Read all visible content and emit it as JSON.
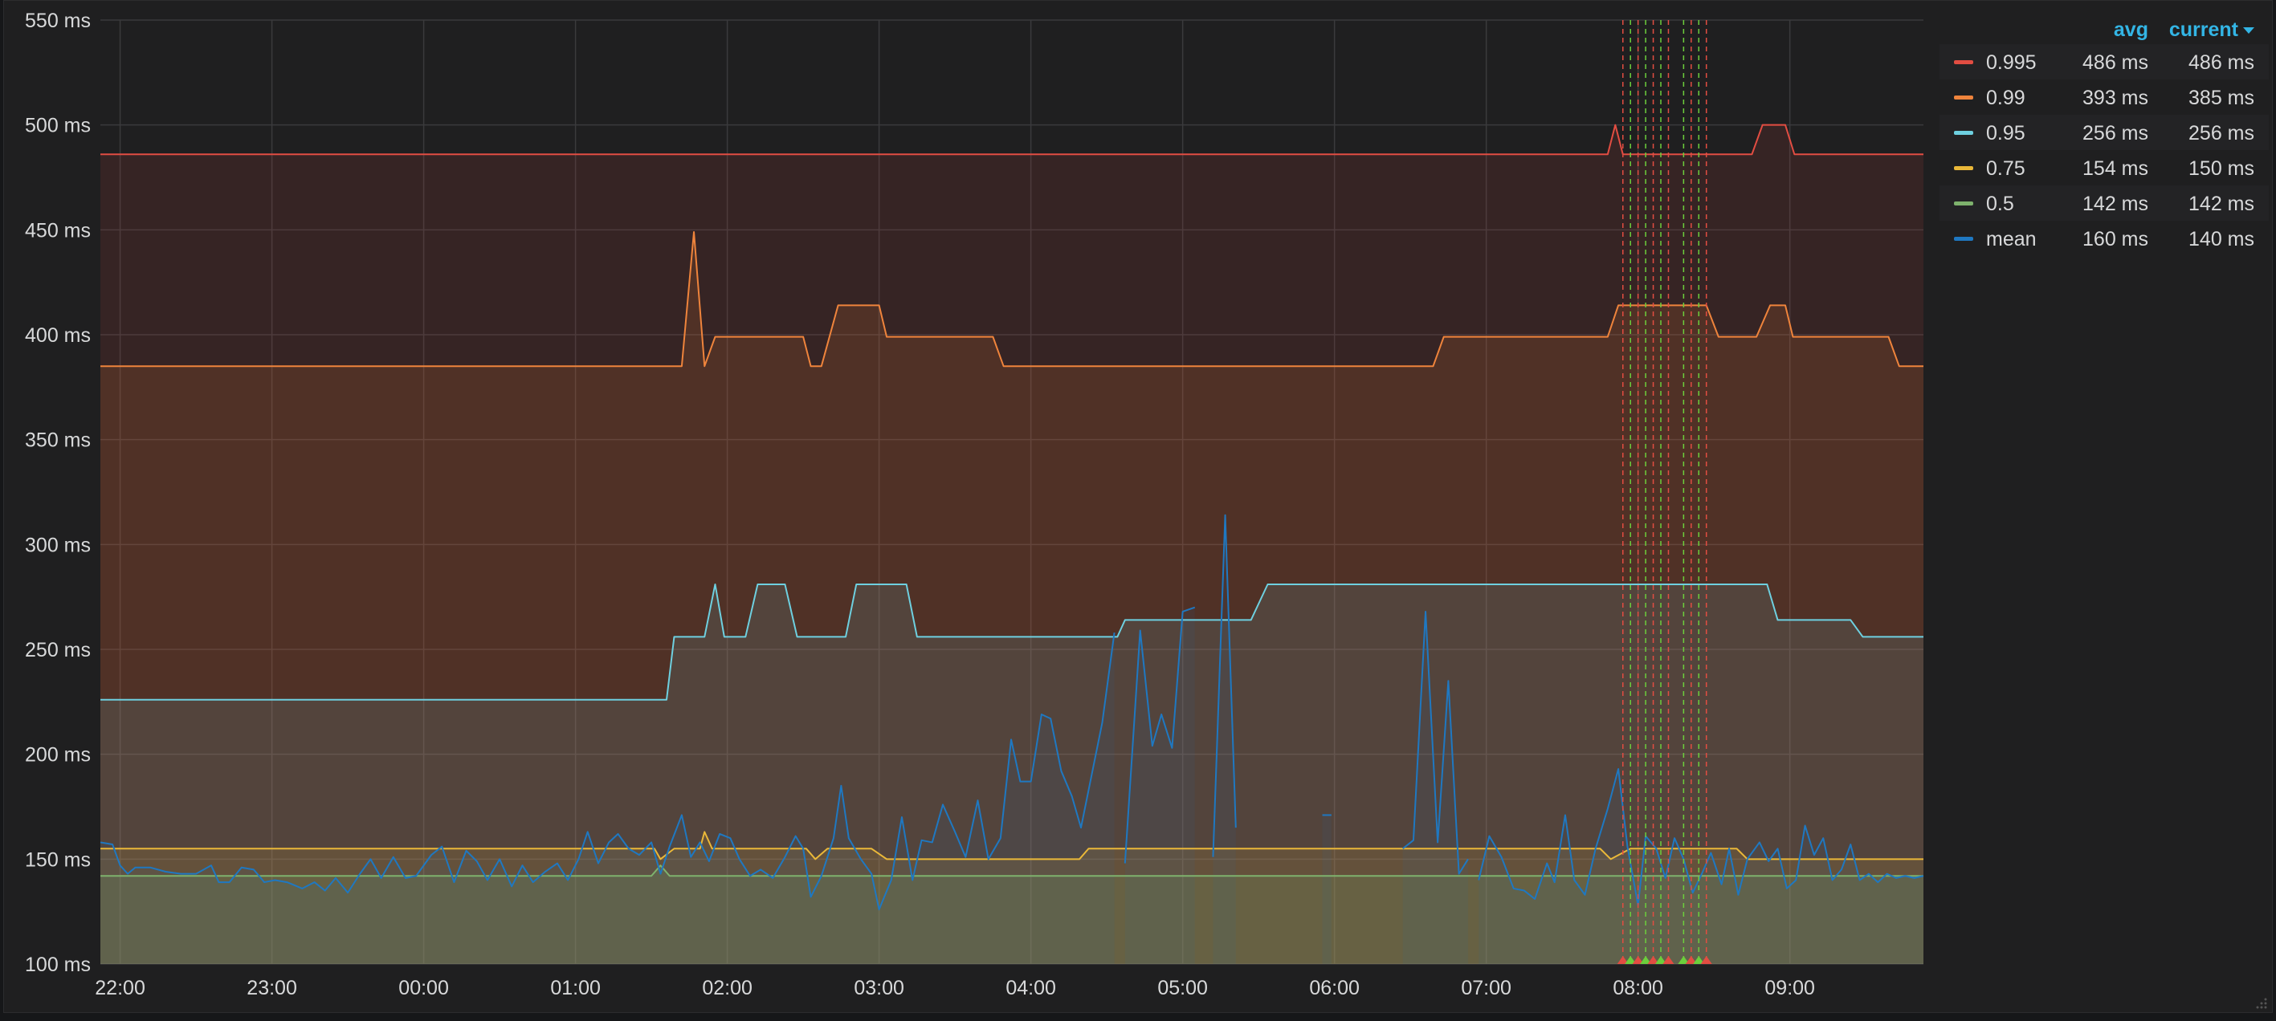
{
  "chart_data": {
    "type": "line",
    "title": "",
    "xlabel": "",
    "ylabel": "",
    "ylim": [
      100,
      550
    ],
    "y_ticks": [
      100,
      150,
      200,
      250,
      300,
      350,
      400,
      450,
      500,
      550
    ],
    "y_tick_labels": [
      "100 ms",
      "150 ms",
      "200 ms",
      "250 ms",
      "300 ms",
      "350 ms",
      "400 ms",
      "450 ms",
      "500 ms",
      "550 ms"
    ],
    "x_ticks": [
      -2,
      -1,
      0,
      1,
      2,
      3,
      4,
      5,
      6,
      7,
      8,
      9
    ],
    "x_tick_labels": [
      "22:00",
      "23:00",
      "00:00",
      "01:00",
      "02:00",
      "03:00",
      "04:00",
      "05:00",
      "06:00",
      "07:00",
      "08:00",
      "09:00"
    ],
    "xlim": [
      -2.13,
      9.88
    ],
    "grid": true,
    "legend_position": "right",
    "legend_columns": [
      "avg",
      "current"
    ],
    "series": [
      {
        "name": "0.995",
        "color": "#e24d42",
        "avg": "486 ms",
        "current": "486 ms",
        "points": [
          [
            -2.13,
            486
          ],
          [
            7.8,
            486
          ],
          [
            7.85,
            500
          ],
          [
            7.9,
            486
          ],
          [
            8.75,
            486
          ],
          [
            8.82,
            500
          ],
          [
            8.97,
            500
          ],
          [
            9.03,
            486
          ],
          [
            9.88,
            486
          ]
        ]
      },
      {
        "name": "0.99",
        "color": "#ef843c",
        "avg": "393 ms",
        "current": "385 ms",
        "points": [
          [
            -2.13,
            385
          ],
          [
            1.7,
            385
          ],
          [
            1.78,
            449
          ],
          [
            1.85,
            385
          ],
          [
            1.92,
            399
          ],
          [
            2.5,
            399
          ],
          [
            2.55,
            385
          ],
          [
            2.62,
            385
          ],
          [
            2.73,
            414
          ],
          [
            3.0,
            414
          ],
          [
            3.05,
            399
          ],
          [
            3.75,
            399
          ],
          [
            3.82,
            385
          ],
          [
            6.65,
            385
          ],
          [
            6.72,
            399
          ],
          [
            7.8,
            399
          ],
          [
            7.87,
            414
          ],
          [
            8.45,
            414
          ],
          [
            8.53,
            399
          ],
          [
            8.78,
            399
          ],
          [
            8.87,
            414
          ],
          [
            8.97,
            414
          ],
          [
            9.02,
            399
          ],
          [
            9.65,
            399
          ],
          [
            9.72,
            385
          ],
          [
            9.88,
            385
          ]
        ]
      },
      {
        "name": "0.95",
        "color": "#6ed0e0",
        "avg": "256 ms",
        "current": "256 ms",
        "points": [
          [
            -2.13,
            226
          ],
          [
            1.6,
            226
          ],
          [
            1.65,
            256
          ],
          [
            1.85,
            256
          ],
          [
            1.92,
            281
          ],
          [
            1.98,
            256
          ],
          [
            2.12,
            256
          ],
          [
            2.2,
            281
          ],
          [
            2.38,
            281
          ],
          [
            2.46,
            256
          ],
          [
            2.78,
            256
          ],
          [
            2.85,
            281
          ],
          [
            3.18,
            281
          ],
          [
            3.25,
            256
          ],
          [
            4.57,
            256
          ],
          [
            4.62,
            264
          ],
          [
            5.45,
            264
          ],
          [
            5.56,
            281
          ],
          [
            8.85,
            281
          ],
          [
            8.92,
            264
          ],
          [
            9.4,
            264
          ],
          [
            9.48,
            256
          ],
          [
            9.88,
            256
          ]
        ]
      },
      {
        "name": "0.75",
        "color": "#eab839",
        "avg": "154 ms",
        "current": "150 ms",
        "points": [
          [
            -2.13,
            155
          ],
          [
            1.52,
            155
          ],
          [
            1.56,
            150
          ],
          [
            1.65,
            155
          ],
          [
            1.82,
            155
          ],
          [
            1.85,
            163
          ],
          [
            1.9,
            155
          ],
          [
            2.52,
            155
          ],
          [
            2.58,
            150
          ],
          [
            2.66,
            155
          ],
          [
            2.95,
            155
          ],
          [
            3.05,
            150
          ],
          [
            4.32,
            150
          ],
          [
            4.38,
            155
          ],
          [
            7.75,
            155
          ],
          [
            7.82,
            150
          ],
          [
            7.95,
            155
          ],
          [
            8.65,
            155
          ],
          [
            8.72,
            150
          ],
          [
            9.88,
            150
          ]
        ]
      },
      {
        "name": "0.5",
        "color": "#7eb26d",
        "avg": "142 ms",
        "current": "142 ms",
        "points": [
          [
            -2.13,
            142
          ],
          [
            1.5,
            142
          ],
          [
            1.56,
            147
          ],
          [
            1.62,
            142
          ],
          [
            9.88,
            142
          ]
        ]
      },
      {
        "name": "mean",
        "color": "#1f78c1",
        "avg": "160 ms",
        "current": "140 ms",
        "segments": [
          [
            [
              -2.13,
              158
            ],
            [
              -2.05,
              157
            ],
            [
              -2.0,
              147
            ],
            [
              -1.95,
              143
            ],
            [
              -1.9,
              146
            ],
            [
              -1.8,
              146
            ],
            [
              -1.7,
              144
            ],
            [
              -1.6,
              143
            ],
            [
              -1.5,
              143
            ],
            [
              -1.4,
              147
            ],
            [
              -1.35,
              139
            ],
            [
              -1.28,
              139
            ],
            [
              -1.2,
              146
            ],
            [
              -1.12,
              145
            ],
            [
              -1.05,
              139
            ],
            [
              -0.98,
              140
            ],
            [
              -0.9,
              139
            ],
            [
              -0.8,
              136
            ],
            [
              -0.72,
              139
            ],
            [
              -0.65,
              135
            ],
            [
              -0.58,
              141
            ],
            [
              -0.5,
              134
            ],
            [
              -0.42,
              143
            ],
            [
              -0.35,
              150
            ],
            [
              -0.28,
              141
            ],
            [
              -0.2,
              151
            ],
            [
              -0.12,
              141
            ],
            [
              -0.05,
              142
            ],
            [
              0.05,
              152
            ],
            [
              0.12,
              156
            ],
            [
              0.2,
              139
            ],
            [
              0.28,
              154
            ],
            [
              0.35,
              149
            ],
            [
              0.42,
              140
            ],
            [
              0.5,
              150
            ],
            [
              0.58,
              137
            ],
            [
              0.65,
              147
            ],
            [
              0.72,
              139
            ],
            [
              0.8,
              144
            ],
            [
              0.88,
              148
            ],
            [
              0.95,
              140
            ],
            [
              1.02,
              150
            ],
            [
              1.08,
              163
            ],
            [
              1.15,
              148
            ],
            [
              1.22,
              158
            ],
            [
              1.28,
              162
            ],
            [
              1.35,
              155
            ],
            [
              1.42,
              152
            ],
            [
              1.5,
              158
            ],
            [
              1.56,
              143
            ],
            [
              1.62,
              156
            ],
            [
              1.7,
              171
            ],
            [
              1.76,
              151
            ],
            [
              1.82,
              158
            ],
            [
              1.88,
              149
            ],
            [
              1.95,
              162
            ],
            [
              2.02,
              160
            ],
            [
              2.08,
              150
            ],
            [
              2.15,
              142
            ],
            [
              2.22,
              145
            ],
            [
              2.3,
              141
            ],
            [
              2.38,
              151
            ],
            [
              2.45,
              161
            ],
            [
              2.5,
              155
            ],
            [
              2.55,
              132
            ],
            [
              2.62,
              142
            ],
            [
              2.7,
              160
            ],
            [
              2.75,
              185
            ],
            [
              2.8,
              160
            ],
            [
              2.88,
              150
            ],
            [
              2.95,
              143
            ],
            [
              3.0,
              126
            ],
            [
              3.08,
              140
            ],
            [
              3.15,
              170
            ],
            [
              3.22,
              140
            ],
            [
              3.28,
              159
            ],
            [
              3.35,
              158
            ],
            [
              3.42,
              176
            ],
            [
              3.5,
              163
            ],
            [
              3.57,
              151
            ],
            [
              3.65,
              178
            ],
            [
              3.72,
              150
            ],
            [
              3.8,
              160
            ],
            [
              3.87,
              207
            ],
            [
              3.93,
              187
            ],
            [
              4.0,
              187
            ],
            [
              4.07,
              219
            ],
            [
              4.13,
              217
            ],
            [
              4.2,
              192
            ],
            [
              4.27,
              180
            ],
            [
              4.33,
              165
            ],
            [
              4.4,
              190
            ],
            [
              4.47,
              215
            ],
            [
              4.55,
              258
            ]
          ],
          [
            [
              4.62,
              148
            ],
            [
              4.72,
              259
            ],
            [
              4.8,
              204
            ],
            [
              4.86,
              219
            ],
            [
              4.93,
              203
            ],
            [
              5.0,
              268
            ],
            [
              5.08,
              270
            ]
          ],
          [
            [
              5.2,
              151
            ],
            [
              5.28,
              314
            ],
            [
              5.35,
              165
            ]
          ],
          [
            [
              5.92,
              171
            ],
            [
              5.98,
              171
            ]
          ],
          [
            [
              6.45,
              155
            ],
            [
              6.52,
              159
            ],
            [
              6.6,
              268
            ],
            [
              6.68,
              158
            ],
            [
              6.75,
              235
            ],
            [
              6.82,
              143
            ],
            [
              6.88,
              150
            ]
          ],
          [
            [
              6.95,
              140
            ],
            [
              7.02,
              161
            ],
            [
              7.1,
              151
            ],
            [
              7.18,
              136
            ],
            [
              7.25,
              135
            ],
            [
              7.32,
              131
            ],
            [
              7.4,
              148
            ],
            [
              7.45,
              139
            ],
            [
              7.52,
              171
            ],
            [
              7.58,
              140
            ],
            [
              7.65,
              133
            ],
            [
              7.72,
              155
            ],
            [
              7.8,
              174
            ],
            [
              7.87,
              193
            ],
            [
              7.93,
              156
            ],
            [
              8.0,
              128
            ],
            [
              8.05,
              161
            ],
            [
              8.12,
              155
            ],
            [
              8.18,
              141
            ],
            [
              8.24,
              160
            ],
            [
              8.3,
              150
            ],
            [
              8.36,
              134
            ],
            [
              8.42,
              143
            ],
            [
              8.48,
              153
            ],
            [
              8.55,
              138
            ],
            [
              8.6,
              155
            ],
            [
              8.66,
              133
            ],
            [
              8.72,
              150
            ],
            [
              8.8,
              158
            ],
            [
              8.86,
              149
            ],
            [
              8.92,
              155
            ],
            [
              8.98,
              136
            ],
            [
              9.04,
              140
            ],
            [
              9.1,
              166
            ],
            [
              9.16,
              152
            ],
            [
              9.22,
              160
            ],
            [
              9.28,
              140
            ],
            [
              9.34,
              145
            ],
            [
              9.4,
              157
            ],
            [
              9.46,
              140
            ],
            [
              9.52,
              143
            ],
            [
              9.58,
              139
            ],
            [
              9.64,
              143
            ],
            [
              9.7,
              141
            ],
            [
              9.76,
              142
            ],
            [
              9.82,
              141
            ],
            [
              9.88,
              142
            ]
          ]
        ]
      }
    ],
    "annotations_x": [
      7.9,
      7.95,
      8.0,
      8.05,
      8.1,
      8.15,
      8.2,
      8.3,
      8.35,
      8.4,
      8.45
    ]
  }
}
